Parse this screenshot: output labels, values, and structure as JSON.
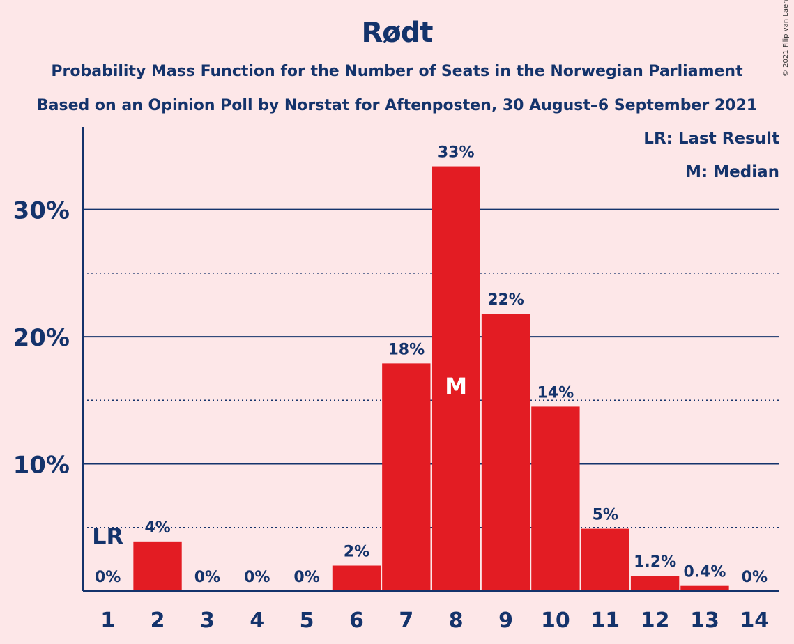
{
  "title": "Rødt",
  "subtitle1": "Probability Mass Function for the Number of Seats in the Norwegian Parliament",
  "subtitle2": "Based on an Opinion Poll by Norstat for Aftenposten, 30 August–6 September 2021",
  "copyright": "© 2021 Filip van Laenen",
  "legend": {
    "lr": "LR: Last Result",
    "m": "M: Median"
  },
  "colors": {
    "bar": "#e31c23",
    "axis": "#14336b",
    "background": "#fde7e8"
  },
  "chart_data": {
    "type": "bar",
    "categories": [
      "1",
      "2",
      "3",
      "4",
      "5",
      "6",
      "7",
      "8",
      "9",
      "10",
      "11",
      "12",
      "13",
      "14"
    ],
    "values": [
      0,
      3.9,
      0,
      0,
      0,
      2.0,
      17.9,
      33.4,
      21.8,
      14.5,
      4.9,
      1.2,
      0.4,
      0
    ],
    "value_labels": [
      "0%",
      "4%",
      "0%",
      "0%",
      "0%",
      "2%",
      "18%",
      "33%",
      "22%",
      "14%",
      "5%",
      "1.2%",
      "0.4%",
      "0%"
    ],
    "ylim": [
      0,
      36.5
    ],
    "yticks": [
      10,
      20,
      30
    ],
    "ytick_labels": [
      "10%",
      "20%",
      "30%"
    ],
    "minor_gridlines": [
      5,
      15,
      25
    ],
    "last_result": {
      "category": "1",
      "label": "LR"
    },
    "median": {
      "category": "8",
      "label": "M"
    }
  }
}
